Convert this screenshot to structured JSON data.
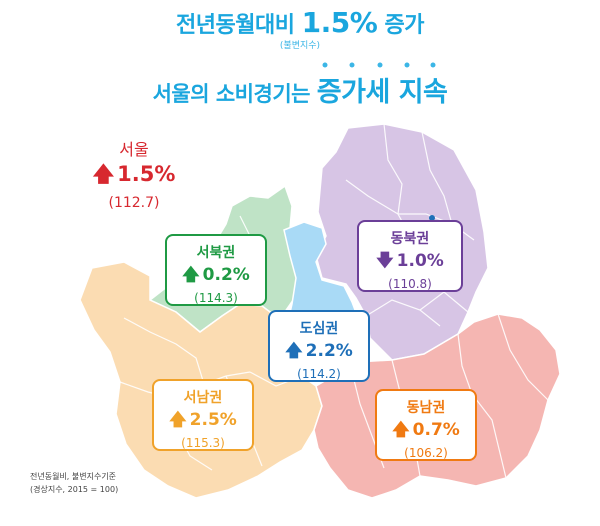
{
  "header": {
    "line1_prefix": "전년동월대비",
    "line1_value": "1.5%",
    "line1_suffix": "증가",
    "line1_note": "(불변지수)",
    "line2_prefix": "서울의 소비경기는",
    "line2_emphasis": "증가세 지속"
  },
  "seoul": {
    "name": "서울",
    "change": "1.5%",
    "index": "(112.7)",
    "direction": "up",
    "color": "#d7282f"
  },
  "regions": [
    {
      "key": "seobuk",
      "name": "서북권",
      "change": "0.2%",
      "index": "(114.3)",
      "direction": "up",
      "color": "#1f9a44",
      "fill": "#bfe3c6"
    },
    {
      "key": "dongbuk",
      "name": "동북권",
      "change": "1.0%",
      "index": "(110.8)",
      "direction": "down",
      "color": "#6b3f98",
      "fill": "#d7c5e5"
    },
    {
      "key": "dosim",
      "name": "도심권",
      "change": "2.2%",
      "index": "(114.2)",
      "direction": "up",
      "color": "#1e6fb8",
      "fill": "#a9daf6"
    },
    {
      "key": "seonam",
      "name": "서남권",
      "change": "2.5%",
      "index": "(115.3)",
      "direction": "up",
      "color": "#f0a22a",
      "fill": "#fbdcb2"
    },
    {
      "key": "dongnam",
      "name": "동남권",
      "change": "0.7%",
      "index": "(106.2)",
      "direction": "up",
      "color": "#f07a12",
      "fill": "#f5b6b2"
    }
  ],
  "footnote": {
    "line1": "전년동월비, 불변지수기준",
    "line2": "(경상지수, 2015 = 100)"
  }
}
